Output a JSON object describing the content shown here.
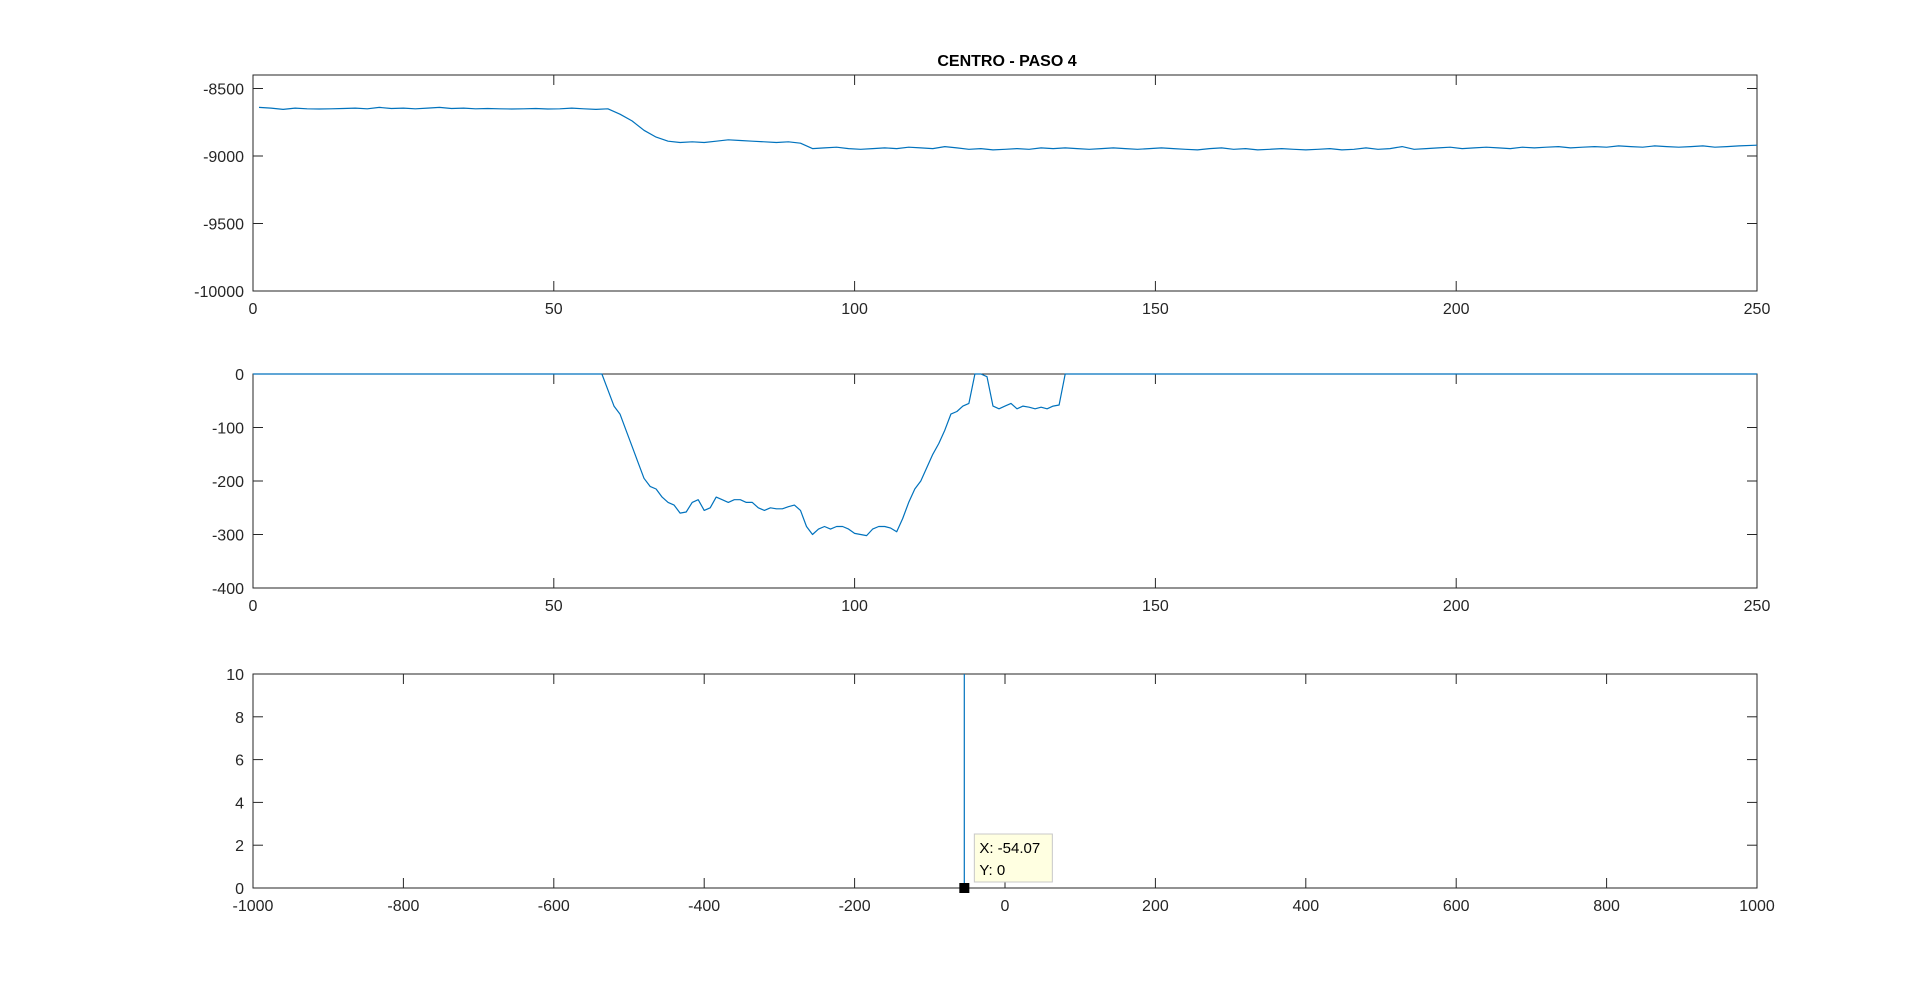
{
  "figure": {
    "background": "#ffffff",
    "line_color": "#0072BD",
    "axis_color": "#262626"
  },
  "chart_data": [
    {
      "type": "line",
      "title": "CENTRO - PASO 4",
      "xlabel": "",
      "ylabel": "",
      "xlim": [
        0,
        250
      ],
      "ylim": [
        -10000,
        -8400
      ],
      "xticks": [
        0,
        50,
        100,
        150,
        200,
        250
      ],
      "yticks": [
        -10000,
        -9500,
        -9000,
        -8500
      ],
      "grid": false,
      "series": [
        {
          "x": [
            1,
            3,
            5,
            7,
            9,
            11,
            13,
            15,
            17,
            19,
            21,
            23,
            25,
            27,
            29,
            31,
            33,
            35,
            37,
            39,
            41,
            43,
            45,
            47,
            49,
            51,
            53,
            55,
            57,
            59,
            61,
            63,
            65,
            67,
            69,
            71,
            73,
            75,
            77,
            79,
            81,
            83,
            85,
            87,
            89,
            91,
            93,
            95,
            97,
            99,
            101,
            103,
            105,
            107,
            109,
            111,
            113,
            115,
            117,
            119,
            121,
            123,
            125,
            127,
            129,
            131,
            133,
            135,
            137,
            139,
            141,
            143,
            145,
            147,
            149,
            151,
            153,
            155,
            157,
            159,
            161,
            163,
            165,
            167,
            169,
            171,
            173,
            175,
            177,
            179,
            181,
            183,
            185,
            187,
            189,
            191,
            193,
            195,
            197,
            199,
            201,
            203,
            205,
            207,
            209,
            211,
            213,
            215,
            217,
            219,
            221,
            223,
            225,
            227,
            229,
            231,
            233,
            235,
            237,
            239,
            241,
            243,
            245,
            247,
            250
          ],
          "y": [
            -8640,
            -8645,
            -8655,
            -8645,
            -8650,
            -8652,
            -8650,
            -8648,
            -8645,
            -8650,
            -8640,
            -8648,
            -8645,
            -8650,
            -8645,
            -8640,
            -8648,
            -8645,
            -8650,
            -8648,
            -8650,
            -8652,
            -8650,
            -8648,
            -8652,
            -8650,
            -8645,
            -8650,
            -8655,
            -8650,
            -8690,
            -8740,
            -8810,
            -8860,
            -8890,
            -8900,
            -8895,
            -8900,
            -8890,
            -8880,
            -8885,
            -8890,
            -8895,
            -8900,
            -8895,
            -8905,
            -8945,
            -8940,
            -8935,
            -8945,
            -8950,
            -8945,
            -8940,
            -8945,
            -8935,
            -8940,
            -8945,
            -8930,
            -8940,
            -8950,
            -8945,
            -8955,
            -8950,
            -8945,
            -8950,
            -8940,
            -8945,
            -8940,
            -8945,
            -8950,
            -8945,
            -8940,
            -8945,
            -8950,
            -8945,
            -8940,
            -8945,
            -8950,
            -8955,
            -8945,
            -8940,
            -8950,
            -8945,
            -8955,
            -8950,
            -8945,
            -8950,
            -8955,
            -8950,
            -8945,
            -8955,
            -8950,
            -8940,
            -8950,
            -8945,
            -8930,
            -8950,
            -8945,
            -8940,
            -8935,
            -8945,
            -8940,
            -8935,
            -8940,
            -8945,
            -8935,
            -8940,
            -8935,
            -8930,
            -8940,
            -8935,
            -8930,
            -8935,
            -8925,
            -8930,
            -8935,
            -8925,
            -8930,
            -8935,
            -8930,
            -8925,
            -8935,
            -8930,
            -8925,
            -8920
          ]
        }
      ]
    },
    {
      "type": "line",
      "title": "",
      "xlabel": "",
      "ylabel": "",
      "xlim": [
        0,
        250
      ],
      "ylim": [
        -400,
        0
      ],
      "xticks": [
        0,
        50,
        100,
        150,
        200,
        250
      ],
      "yticks": [
        -400,
        -300,
        -200,
        -100,
        0
      ],
      "grid": false,
      "series": [
        {
          "x": [
            0,
            58,
            60,
            61,
            62,
            63,
            64,
            65,
            66,
            67,
            68,
            69,
            70,
            71,
            72,
            73,
            74,
            75,
            76,
            77,
            78,
            79,
            80,
            81,
            82,
            83,
            84,
            85,
            86,
            87,
            88,
            89,
            90,
            91,
            92,
            93,
            94,
            95,
            96,
            97,
            98,
            99,
            100,
            101,
            102,
            103,
            104,
            105,
            106,
            107,
            108,
            109,
            110,
            111,
            112,
            113,
            114,
            115,
            116,
            117,
            118,
            119,
            120,
            121,
            122,
            123,
            124,
            125,
            126,
            127,
            128,
            129,
            130,
            131,
            132,
            133,
            134,
            135,
            250
          ],
          "y": [
            0,
            0,
            -60,
            -75,
            -105,
            -135,
            -165,
            -195,
            -210,
            -215,
            -230,
            -240,
            -245,
            -260,
            -258,
            -240,
            -235,
            -255,
            -250,
            -230,
            -235,
            -240,
            -235,
            -235,
            -240,
            -240,
            -250,
            -255,
            -250,
            -252,
            -252,
            -248,
            -245,
            -255,
            -285,
            -300,
            -290,
            -285,
            -290,
            -285,
            -285,
            -290,
            -298,
            -300,
            -302,
            -290,
            -285,
            -285,
            -288,
            -295,
            -270,
            -240,
            -215,
            -200,
            -175,
            -150,
            -130,
            -105,
            -75,
            -70,
            -60,
            -55,
            0,
            0,
            -5,
            -60,
            -65,
            -60,
            -55,
            -65,
            -60,
            -62,
            -65,
            -62,
            -65,
            -60,
            -58,
            0,
            0
          ]
        }
      ]
    },
    {
      "type": "line",
      "title": "",
      "xlabel": "",
      "ylabel": "",
      "xlim": [
        -1000,
        1000
      ],
      "ylim": [
        0,
        10
      ],
      "xticks": [
        -1000,
        -800,
        -600,
        -400,
        -200,
        0,
        200,
        400,
        600,
        800,
        1000
      ],
      "yticks": [
        0,
        2,
        4,
        6,
        8,
        10
      ],
      "grid": false,
      "series": [
        {
          "x": [
            -54.07,
            -54.07
          ],
          "y": [
            0,
            10
          ]
        }
      ],
      "datatip": {
        "x": -54.07,
        "y": 0,
        "x_text": "X: -54.07",
        "y_text": "Y: 0"
      }
    }
  ]
}
